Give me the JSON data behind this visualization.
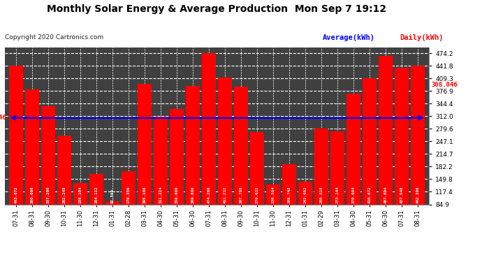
{
  "title": "Monthly Solar Energy & Average Production  Mon Sep 7 19:12",
  "copyright": "Copyright 2020 Cartronics.com",
  "legend_average": "Average(kWh)",
  "legend_daily": "Daily(kWh)",
  "average_value": 308.046,
  "average_label": "308.046",
  "categories": [
    "07-31",
    "08-31",
    "09-30",
    "10-31",
    "11-30",
    "12-31",
    "01-31",
    "02-28",
    "03-31",
    "04-30",
    "05-31",
    "06-30",
    "07-31",
    "08-31",
    "09-30",
    "10-31",
    "11-30",
    "12-31",
    "01-31",
    "02-29",
    "03-31",
    "04-30",
    "05-31",
    "06-30",
    "07-31",
    "08-31"
  ],
  "values": [
    443.072,
    380.696,
    337.2,
    262.248,
    139.104,
    164.112,
    92.564,
    170.356,
    395.168,
    311.224,
    330.0,
    389.8,
    474.2,
    411.212,
    387.788,
    270.632,
    136.384,
    188.748,
    142.692,
    280.328,
    273.144,
    370.984,
    410.072,
    467.604,
    437.548,
    442.308
  ],
  "value_labels": [
    "443.072",
    "380.696",
    "337.200",
    "262.248",
    "139.104",
    "164.112",
    "92.564",
    "170.356",
    "395.168",
    "311.224",
    "330.000",
    "389.800",
    "474.200",
    "411.212",
    "387.788",
    "270.632",
    "136.384",
    "188.748",
    "142.692",
    "280.328",
    "273.144",
    "370.984",
    "410.072",
    "467.604",
    "437.548",
    "442.308"
  ],
  "bar_color": "#FF0000",
  "average_line_color": "#0000FF",
  "average_label_color": "#FF0000",
  "background_color": "#FFFFFF",
  "plot_bg_color": "#404040",
  "grid_color": "#FFFFFF",
  "title_color": "#000000",
  "ymin": 84.9,
  "ymax": 490.0,
  "yticks": [
    84.9,
    117.4,
    149.8,
    182.2,
    214.7,
    247.1,
    279.6,
    312.0,
    344.4,
    376.9,
    409.3,
    441.8,
    474.2
  ],
  "ytick_labels": [
    "84.9",
    "117.4",
    "149.8",
    "182.2",
    "214.7",
    "247.1",
    "279.6",
    "312.0",
    "344.4",
    "376.9",
    "409.3",
    "441.8",
    "474.2"
  ]
}
